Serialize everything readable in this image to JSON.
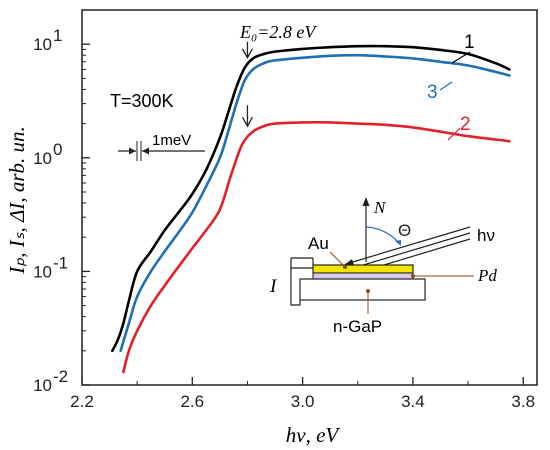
{
  "chart_data": {
    "type": "line",
    "xlabel": "hν, eV",
    "ylabel": "Iₚ, Iₛ, ΔI, arb. un.",
    "xlim": [
      2.2,
      3.85
    ],
    "ylim": [
      0.01,
      20
    ],
    "yscale": "log",
    "x_ticks": [
      {
        "v": 2.2,
        "label": "2.2"
      },
      {
        "v": 2.6,
        "label": "2.6"
      },
      {
        "v": 3.0,
        "label": "3.0"
      },
      {
        "v": 3.4,
        "label": "3.4"
      },
      {
        "v": 3.8,
        "label": "3.8"
      }
    ],
    "y_ticks": [
      {
        "v": 0.01,
        "base": "10",
        "exp": "-2"
      },
      {
        "v": 0.1,
        "base": "10",
        "exp": "-1"
      },
      {
        "v": 1,
        "base": "10",
        "exp": "0"
      },
      {
        "v": 10,
        "base": "10",
        "exp": "1"
      }
    ],
    "series": [
      {
        "name": "1",
        "color": "#000000",
        "x": [
          2.31,
          2.33,
          2.35,
          2.37,
          2.4,
          2.45,
          2.5,
          2.55,
          2.6,
          2.65,
          2.7,
          2.73,
          2.76,
          2.79,
          2.82,
          2.86,
          2.9,
          3.0,
          3.1,
          3.2,
          3.3,
          3.4,
          3.5,
          3.6,
          3.7,
          3.75
        ],
        "y": [
          0.02,
          0.025,
          0.035,
          0.055,
          0.1,
          0.15,
          0.23,
          0.33,
          0.48,
          0.78,
          1.5,
          2.5,
          4.2,
          6.2,
          7.5,
          8.2,
          8.6,
          9.1,
          9.4,
          9.6,
          9.6,
          9.4,
          8.9,
          8.2,
          6.8,
          6.0
        ]
      },
      {
        "name": "3",
        "color": "#1f6fb5",
        "x": [
          2.34,
          2.37,
          2.4,
          2.45,
          2.5,
          2.55,
          2.6,
          2.65,
          2.7,
          2.73,
          2.76,
          2.79,
          2.82,
          2.86,
          2.9,
          3.0,
          3.1,
          3.2,
          3.3,
          3.4,
          3.5,
          3.6,
          3.7,
          3.75
        ],
        "y": [
          0.02,
          0.035,
          0.06,
          0.1,
          0.15,
          0.22,
          0.33,
          0.56,
          1.0,
          1.7,
          3.0,
          4.8,
          6.0,
          6.8,
          7.2,
          7.6,
          7.9,
          8.0,
          7.8,
          7.5,
          7.0,
          6.5,
          5.7,
          5.3
        ]
      },
      {
        "name": "2",
        "color": "#e3202a",
        "x": [
          2.35,
          2.37,
          2.4,
          2.45,
          2.5,
          2.55,
          2.6,
          2.65,
          2.7,
          2.74,
          2.78,
          2.82,
          2.86,
          2.9,
          3.0,
          3.1,
          3.2,
          3.3,
          3.4,
          3.5,
          3.6,
          3.7,
          3.75
        ],
        "y": [
          0.013,
          0.02,
          0.03,
          0.05,
          0.075,
          0.11,
          0.16,
          0.23,
          0.35,
          0.7,
          1.3,
          1.7,
          1.9,
          2.0,
          2.05,
          2.05,
          2.0,
          1.95,
          1.85,
          1.7,
          1.55,
          1.45,
          1.4
        ]
      }
    ],
    "annotations": {
      "E0_label": "E₀=2.8 eV",
      "E0_x": 2.8,
      "E0_arrow_y": [
        10.5,
        7.6
      ],
      "second_arrow_x": 2.8,
      "second_arrow_y": [
        2.9,
        1.9
      ],
      "temperature": "T=300K",
      "resolution": "1meV",
      "label_1": "1",
      "label_2": "2",
      "label_3": "3"
    },
    "inset": {
      "N": "N",
      "theta": "Θ",
      "hv": "hν",
      "Au": "Au",
      "Pd": "Pd",
      "I": "I",
      "nGaP": "n-GaP"
    }
  }
}
